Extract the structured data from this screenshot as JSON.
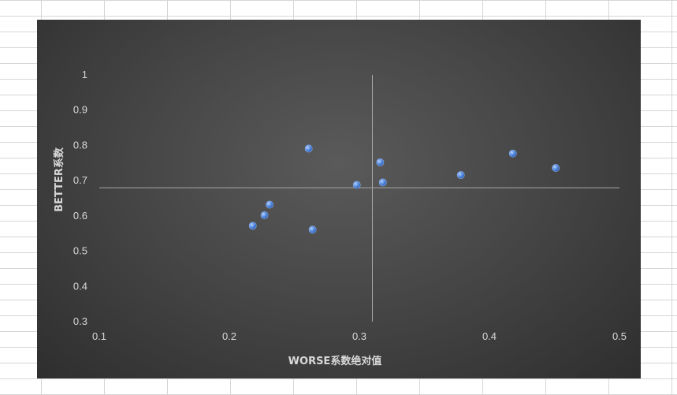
{
  "chart_data": {
    "type": "scatter",
    "title": "",
    "xlabel": "WORSE系数绝对值",
    "ylabel": "BETTER系数",
    "xlim": [
      0.1,
      0.5
    ],
    "ylim": [
      0.3,
      1
    ],
    "x_ticks": [
      "0.1",
      "0.2",
      "0.3",
      "0.4",
      "0.5"
    ],
    "y_ticks": [
      "0.3",
      "0.4",
      "0.5",
      "0.6",
      "0.7",
      "0.8",
      "0.9",
      "1"
    ],
    "reference_lines": {
      "x": 0.31,
      "y": 0.68
    },
    "grid": false,
    "marker_color": "#5b8fe0",
    "series": [
      {
        "points": [
          {
            "x": 0.218,
            "y": 0.572
          },
          {
            "x": 0.227,
            "y": 0.602
          },
          {
            "x": 0.231,
            "y": 0.632
          },
          {
            "x": 0.261,
            "y": 0.791
          },
          {
            "x": 0.264,
            "y": 0.561
          },
          {
            "x": 0.298,
            "y": 0.688
          },
          {
            "x": 0.316,
            "y": 0.752
          },
          {
            "x": 0.318,
            "y": 0.695
          },
          {
            "x": 0.378,
            "y": 0.716
          },
          {
            "x": 0.418,
            "y": 0.777
          },
          {
            "x": 0.451,
            "y": 0.736
          }
        ]
      }
    ]
  }
}
